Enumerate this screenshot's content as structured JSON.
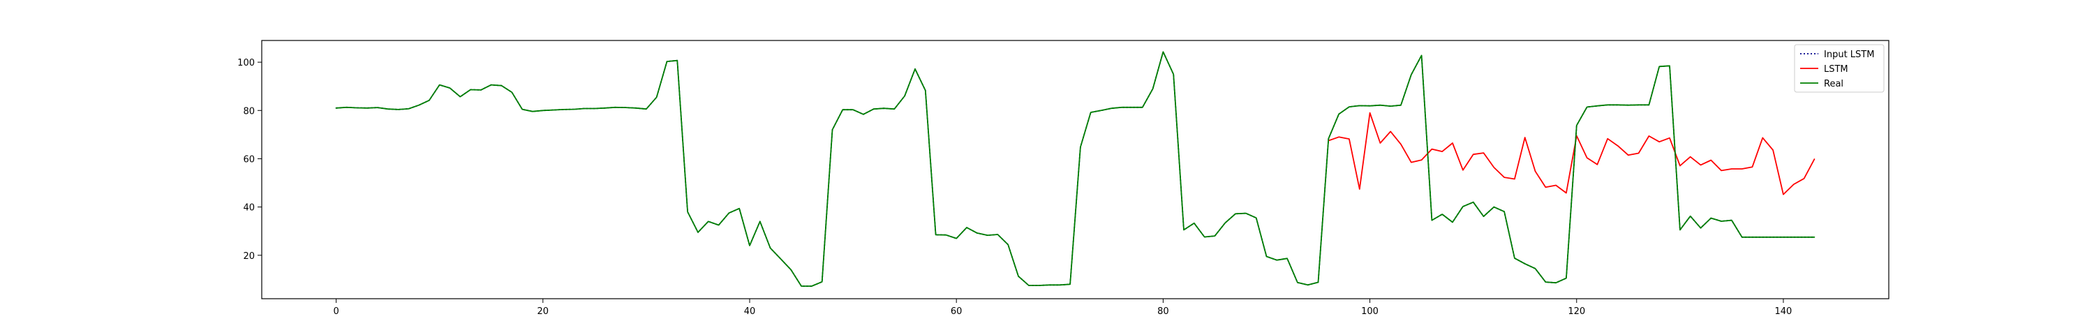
{
  "chart_data": {
    "type": "line",
    "title": "",
    "xlabel": "",
    "ylabel": "",
    "xlim": [
      -7.2,
      150.2
    ],
    "ylim": [
      2.0,
      109.0
    ],
    "x_ticks": [
      0,
      20,
      40,
      60,
      80,
      100,
      120,
      140
    ],
    "y_ticks": [
      20,
      40,
      60,
      80,
      100
    ],
    "grid": false,
    "legend_position": "top-right",
    "series": [
      {
        "name": "Input LSTM",
        "color": "#00008b",
        "style": "dotted",
        "x_start": 0,
        "values": [
          81,
          81.3,
          81.1,
          81,
          81.2,
          80.6,
          80.4,
          80.7,
          82.2,
          84.2,
          90.6,
          89.3,
          85.7,
          88.6,
          88.5,
          90.6,
          90.3,
          87.5,
          80.5,
          79.6,
          80,
          80.2,
          80.4,
          80.5,
          80.8,
          80.8,
          81,
          81.3,
          81.2,
          81,
          80.6,
          85.5,
          100.3,
          100.7,
          38,
          29.5,
          34,
          32.5,
          37.5,
          39.4,
          24,
          34,
          23,
          18.5,
          14,
          7.2,
          7.2,
          9,
          72,
          80.3,
          80.3,
          78.4,
          80.6,
          80.9,
          80.6,
          86,
          97.2,
          88.3,
          28.5,
          28.4,
          27,
          31.5,
          29.2,
          28.3,
          28.6,
          24.4,
          11.3,
          7.5,
          7.5,
          7.7,
          7.7,
          8,
          64.8,
          79.2,
          80,
          80.9,
          81.3,
          81.3,
          81.3,
          89,
          104.3,
          95,
          30.5,
          33.3,
          27.6,
          28,
          33.4,
          37.2,
          37.4,
          35.5,
          19.5,
          18,
          18.7,
          8.7,
          7.7,
          8.8,
          68.3,
          78.5,
          81.5,
          82,
          81.9,
          82.2,
          81.8,
          82.2,
          94.8,
          102.8,
          34.5,
          37,
          33.7,
          40.2,
          42,
          36.1,
          40,
          38.1,
          18.8,
          16.5,
          14.5,
          8.9,
          8.6,
          10.5,
          73.8,
          81.4,
          81.9,
          82.3,
          82.3,
          82.2,
          82.3,
          82.3,
          98.2,
          98.5,
          30.5,
          36.2,
          31.3,
          35.4,
          34.1,
          34.5,
          27.5,
          27.5,
          27.5,
          27.5,
          27.5,
          27.5,
          27.5,
          27.5
        ]
      },
      {
        "name": "LSTM",
        "color": "#ff0000",
        "style": "solid",
        "x_start": 96,
        "values": [
          67.5,
          69,
          68.2,
          47.4,
          79,
          66.5,
          71.3,
          66,
          58.5,
          59.5,
          64,
          63,
          66.5,
          55.3,
          61.8,
          62.4,
          56.4,
          52.3,
          51.6,
          68.8,
          54.8,
          48.2,
          49,
          45.8,
          69.5,
          60.4,
          57.6,
          68.3,
          65.3,
          61.5,
          62.3,
          69.4,
          67,
          68.6,
          57.1,
          60.8,
          57.4,
          59.4,
          55.1,
          55.8,
          55.8,
          56.6,
          68.7,
          63.6,
          45.2,
          49.4,
          51.8,
          59.8
        ]
      },
      {
        "name": "Real",
        "color": "#008000",
        "style": "solid",
        "x_start": 0,
        "values": [
          81,
          81.3,
          81.1,
          81,
          81.2,
          80.6,
          80.4,
          80.7,
          82.2,
          84.2,
          90.6,
          89.3,
          85.7,
          88.6,
          88.5,
          90.6,
          90.3,
          87.5,
          80.5,
          79.6,
          80,
          80.2,
          80.4,
          80.5,
          80.8,
          80.8,
          81,
          81.3,
          81.2,
          81,
          80.6,
          85.5,
          100.3,
          100.7,
          38,
          29.5,
          34,
          32.5,
          37.5,
          39.4,
          24,
          34,
          23,
          18.5,
          14,
          7.2,
          7.2,
          9,
          72,
          80.3,
          80.3,
          78.4,
          80.6,
          80.9,
          80.6,
          86,
          97.2,
          88.3,
          28.5,
          28.4,
          27,
          31.5,
          29.2,
          28.3,
          28.6,
          24.4,
          11.3,
          7.5,
          7.5,
          7.7,
          7.7,
          8,
          64.8,
          79.2,
          80,
          80.9,
          81.3,
          81.3,
          81.3,
          89,
          104.3,
          95,
          30.5,
          33.3,
          27.6,
          28,
          33.4,
          37.2,
          37.4,
          35.5,
          19.5,
          18,
          18.7,
          8.7,
          7.7,
          8.8,
          68.3,
          78.5,
          81.5,
          82,
          81.9,
          82.2,
          81.8,
          82.2,
          94.8,
          102.8,
          34.5,
          37,
          33.7,
          40.2,
          42,
          36.1,
          40,
          38.1,
          18.8,
          16.5,
          14.5,
          8.9,
          8.6,
          10.5,
          73.8,
          81.4,
          81.9,
          82.3,
          82.3,
          82.2,
          82.3,
          82.3,
          98.2,
          98.5,
          30.5,
          36.2,
          31.3,
          35.4,
          34.1,
          34.5,
          27.5,
          27.5,
          27.5,
          27.5,
          27.5,
          27.5,
          27.5,
          27.5
        ]
      }
    ]
  }
}
